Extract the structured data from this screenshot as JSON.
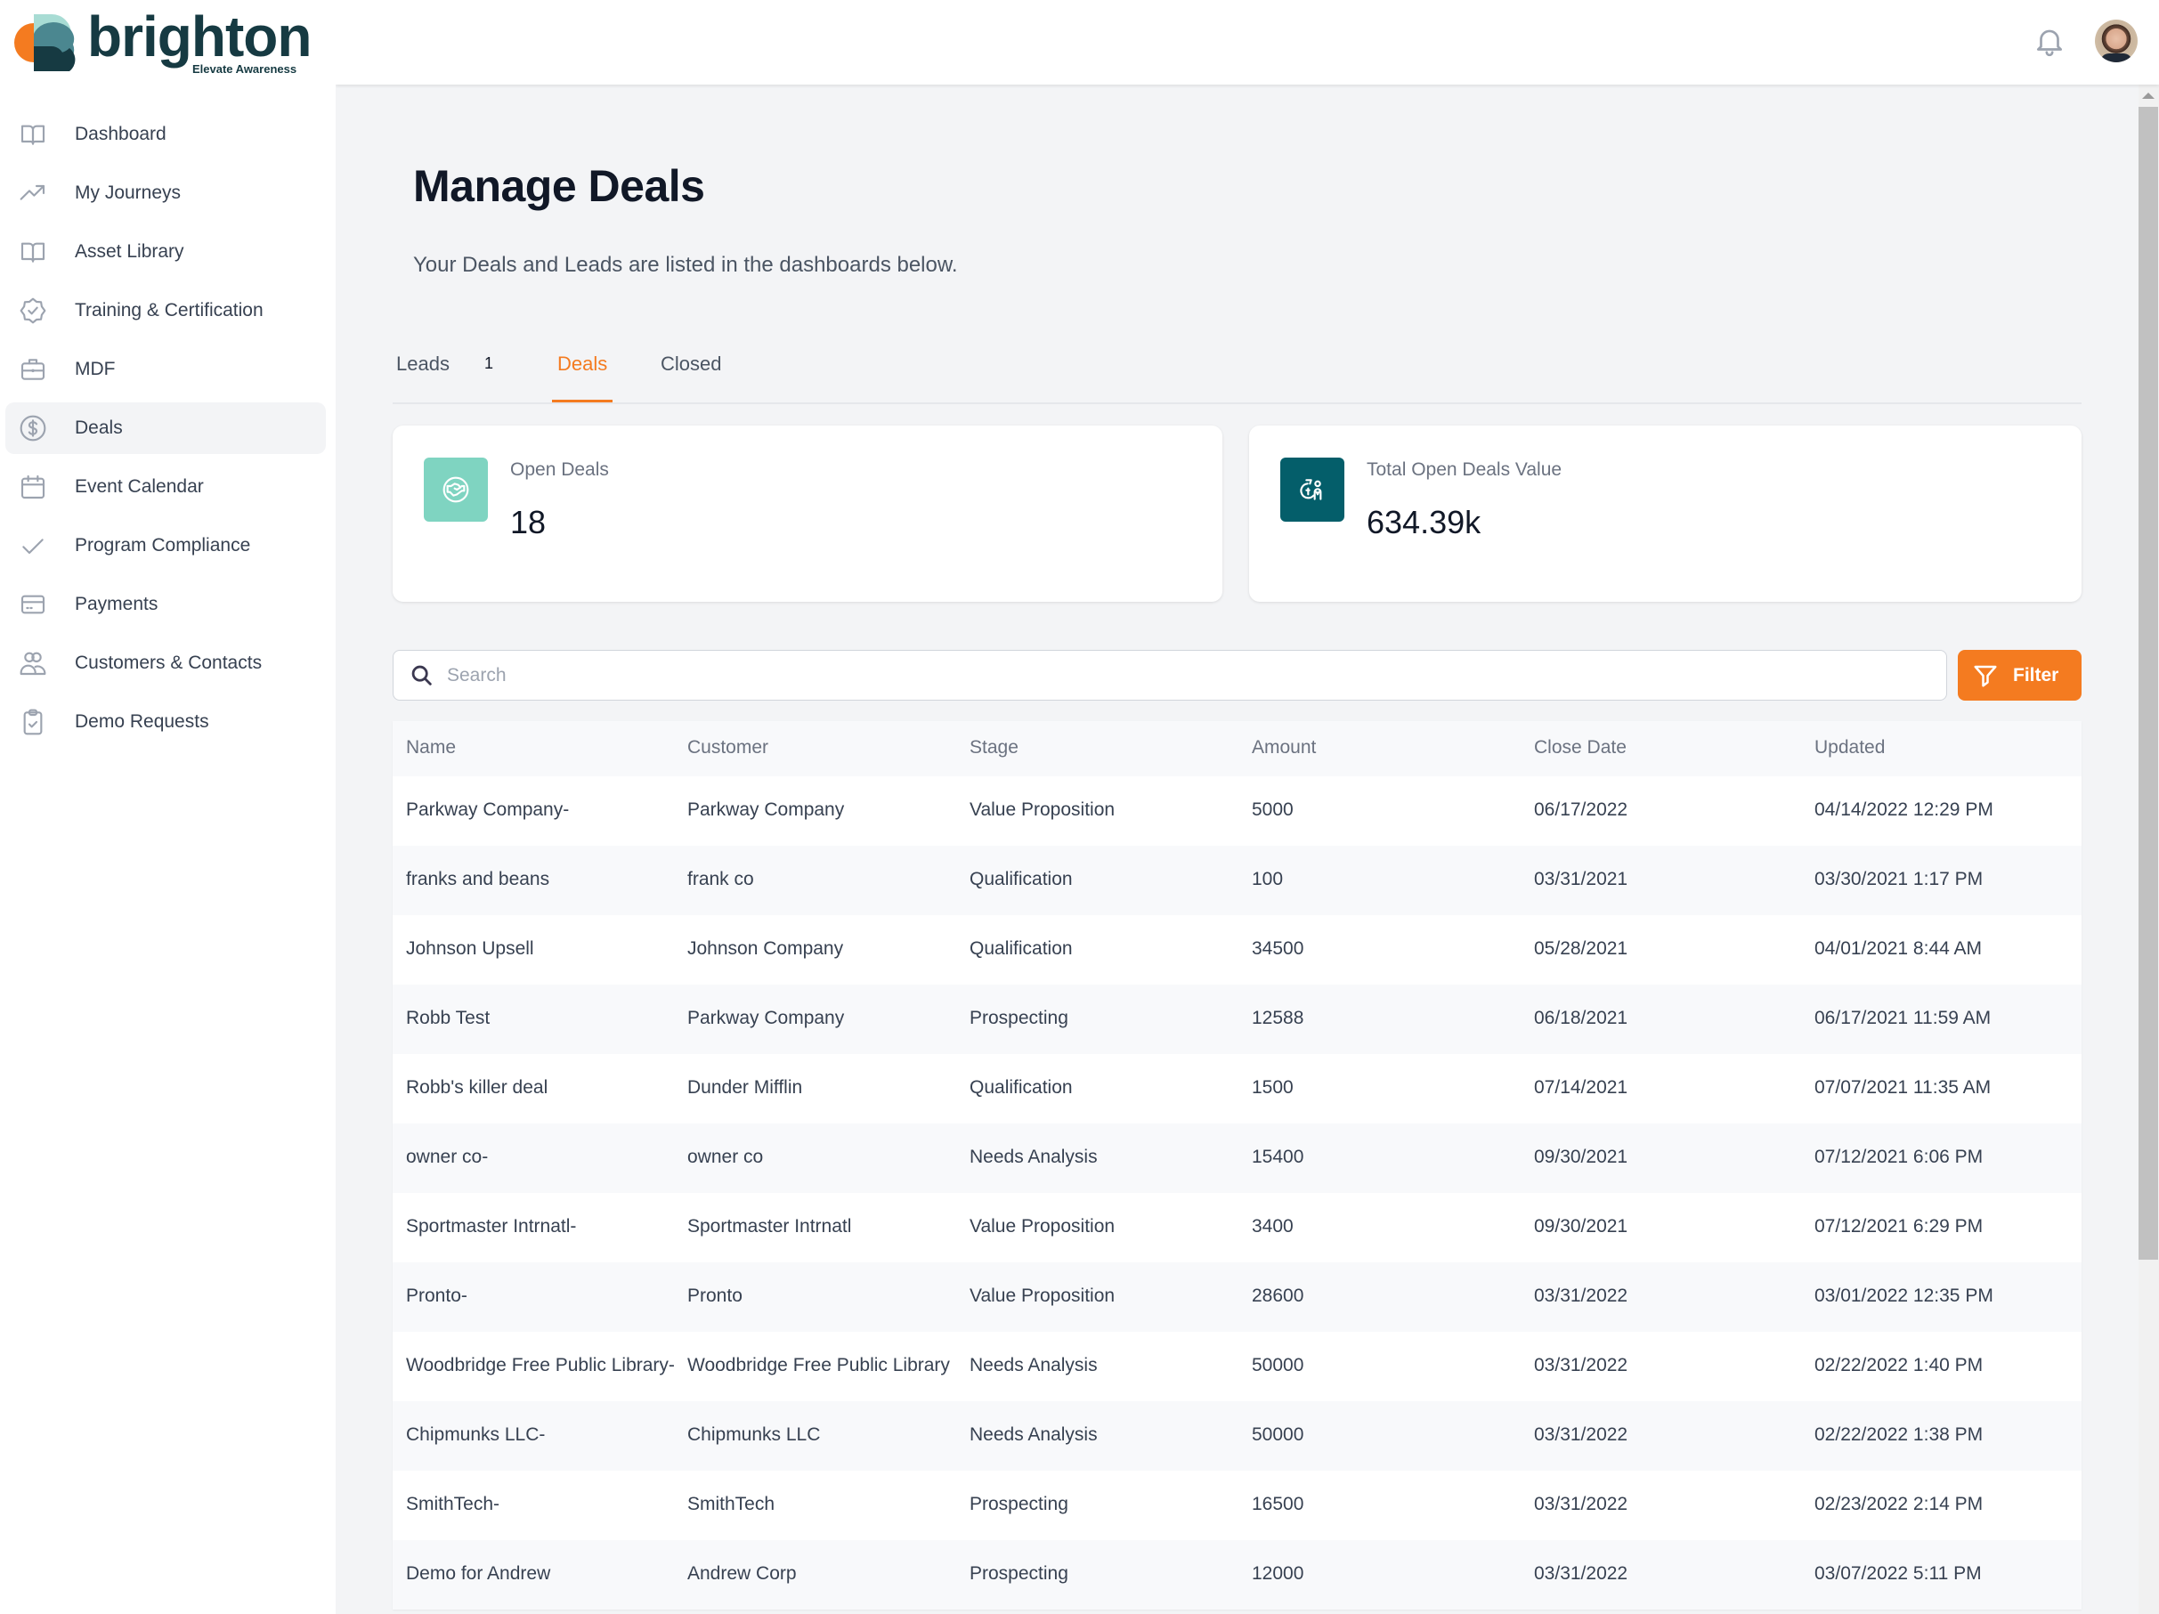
{
  "brand": {
    "name": "brighton",
    "tagline": "Elevate Awareness",
    "colors": {
      "primary": "#163a42",
      "accent": "#f47b20",
      "teal_light": "#7fd4c1",
      "teal_dark": "#045e6a"
    }
  },
  "sidebar": {
    "items": [
      {
        "label": "Dashboard",
        "icon": "book-open-icon",
        "active": false
      },
      {
        "label": "My Journeys",
        "icon": "trending-up-icon",
        "active": false
      },
      {
        "label": "Asset Library",
        "icon": "book-open-icon",
        "active": false
      },
      {
        "label": "Training & Certification",
        "icon": "badge-check-icon",
        "active": false
      },
      {
        "label": "MDF",
        "icon": "briefcase-icon",
        "active": false
      },
      {
        "label": "Deals",
        "icon": "currency-dollar-icon",
        "active": true
      },
      {
        "label": "Event Calendar",
        "icon": "calendar-icon",
        "active": false
      },
      {
        "label": "Program Compliance",
        "icon": "check-icon",
        "active": false
      },
      {
        "label": "Payments",
        "icon": "credit-card-icon",
        "active": false
      },
      {
        "label": "Customers & Contacts",
        "icon": "users-icon",
        "active": false
      },
      {
        "label": "Demo Requests",
        "icon": "clipboard-check-icon",
        "active": false
      }
    ]
  },
  "header": {
    "notifications_icon": "bell-icon",
    "avatar_icon": "user-avatar"
  },
  "page": {
    "title": "Manage Deals",
    "subtitle": "Your Deals and Leads are listed in the dashboards below."
  },
  "tabs": [
    {
      "label": "Leads",
      "count": "1",
      "active": false
    },
    {
      "label": "Deals",
      "count": null,
      "active": true
    },
    {
      "label": "Closed",
      "count": null,
      "active": false
    }
  ],
  "stats": [
    {
      "label": "Open Deals",
      "value": "18",
      "icon": "handshake-icon",
      "color": "#7fd4c1"
    },
    {
      "label": "Total Open Deals Value",
      "value": "634.39k",
      "icon": "money-bag-person-icon",
      "color": "#045e6a"
    }
  ],
  "search": {
    "placeholder": "Search",
    "value": ""
  },
  "filter": {
    "label": "Filter"
  },
  "table": {
    "columns": [
      "Name",
      "Customer",
      "Stage",
      "Amount",
      "Close Date",
      "Updated"
    ],
    "rows": [
      [
        "Parkway Company-",
        "Parkway Company",
        "Value Proposition",
        "5000",
        "06/17/2022",
        "04/14/2022 12:29 PM"
      ],
      [
        "franks and beans",
        "frank co",
        "Qualification",
        "100",
        "03/31/2021",
        "03/30/2021 1:17 PM"
      ],
      [
        "Johnson Upsell",
        "Johnson Company",
        "Qualification",
        "34500",
        "05/28/2021",
        "04/01/2021 8:44 AM"
      ],
      [
        "Robb Test",
        "Parkway Company",
        "Prospecting",
        "12588",
        "06/18/2021",
        "06/17/2021 11:59 AM"
      ],
      [
        "Robb's killer deal",
        "Dunder Mifflin",
        "Qualification",
        "1500",
        "07/14/2021",
        "07/07/2021 11:35 AM"
      ],
      [
        "owner co-",
        "owner co",
        "Needs Analysis",
        "15400",
        "09/30/2021",
        "07/12/2021 6:06 PM"
      ],
      [
        "Sportmaster Intrnatl-",
        "Sportmaster Intrnatl",
        "Value Proposition",
        "3400",
        "09/30/2021",
        "07/12/2021 6:29 PM"
      ],
      [
        "Pronto-",
        "Pronto",
        "Value Proposition",
        "28600",
        "03/31/2022",
        "03/01/2022 12:35 PM"
      ],
      [
        "Woodbridge Free Public Library-",
        "Woodbridge Free Public Library",
        "Needs Analysis",
        "50000",
        "03/31/2022",
        "02/22/2022 1:40 PM"
      ],
      [
        "Chipmunks LLC-",
        "Chipmunks LLC",
        "Needs Analysis",
        "50000",
        "03/31/2022",
        "02/22/2022 1:38 PM"
      ],
      [
        "SmithTech-",
        "SmithTech",
        "Prospecting",
        "16500",
        "03/31/2022",
        "02/23/2022 2:14 PM"
      ],
      [
        "Demo for Andrew",
        "Andrew Corp",
        "Prospecting",
        "12000",
        "03/31/2022",
        "03/07/2022 5:11 PM"
      ]
    ]
  }
}
